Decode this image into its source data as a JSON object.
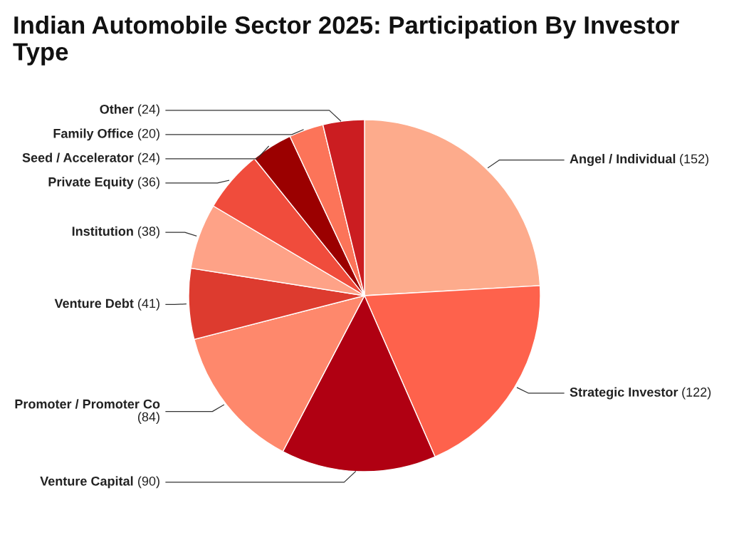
{
  "chart_data": {
    "type": "pie",
    "title": "Indian Automobile Sector 2025: Participation By Investor Type",
    "categories": [
      "Angel / Individual",
      "Strategic Investor",
      "Venture Capital",
      "Promoter / Promoter Co",
      "Venture Debt",
      "Institution",
      "Private Equity",
      "Seed / Accelerator",
      "Family Office",
      "Other"
    ],
    "values": [
      152,
      122,
      90,
      84,
      41,
      38,
      36,
      24,
      20,
      24
    ],
    "colors": [
      "#fdab8c",
      "#fe624c",
      "#b00012",
      "#fe886c",
      "#dd3b2f",
      "#fea287",
      "#f04c3c",
      "#9b0000",
      "#fc7459",
      "#cb1d21"
    ],
    "value_labels": [
      "(152)",
      "(122)",
      "(90)",
      "(84)",
      "(41)",
      "(38)",
      "(36)",
      "(24)",
      "(20)",
      "(24)"
    ],
    "legend": false
  }
}
